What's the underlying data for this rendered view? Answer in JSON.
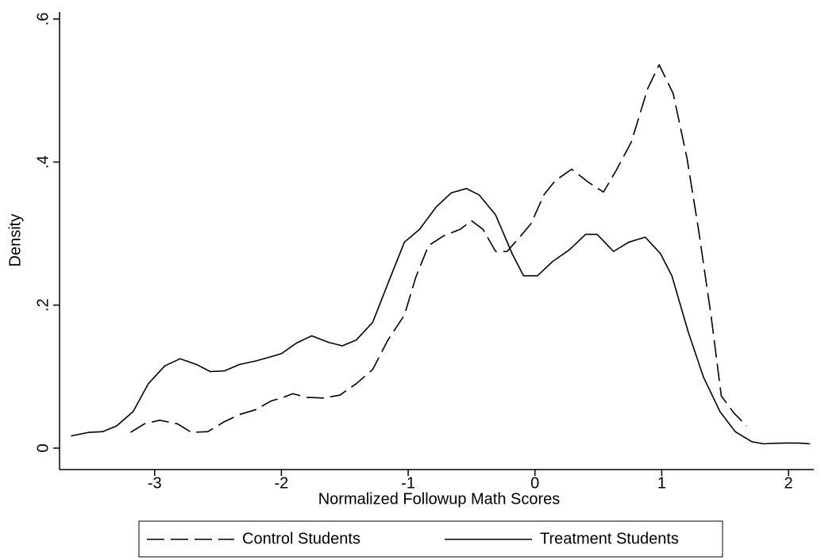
{
  "chart_data": {
    "type": "line",
    "x_label": "Normalized Followup Math Scores",
    "y_label": "Density",
    "xlim": [
      -3.75,
      2.2
    ],
    "ylim": [
      -0.03,
      0.61
    ],
    "xticks": [
      -3,
      -2,
      -1,
      0,
      1,
      2
    ],
    "yticks": [
      0,
      {
        "value": 0.2,
        "label": ".2"
      },
      {
        "value": 0.4,
        "label": ".4"
      },
      {
        "value": 0.6,
        "label": ".6"
      }
    ],
    "grid": false,
    "legend": "bottom",
    "series": [
      {
        "name": "Control Students",
        "color": "#000000",
        "style": "dashed",
        "x": [
          -3.19,
          -3.08,
          -2.96,
          -2.82,
          -2.71,
          -2.58,
          -2.45,
          -2.33,
          -2.2,
          -2.08,
          -2.0,
          -1.91,
          -1.8,
          -1.67,
          -1.54,
          -1.41,
          -1.28,
          -1.16,
          -1.03,
          -0.94,
          -0.84,
          -0.72,
          -0.59,
          -0.5,
          -0.41,
          -0.31,
          -0.22,
          -0.12,
          -0.03,
          0.07,
          0.16,
          0.29,
          0.42,
          0.54,
          0.64,
          0.76,
          0.89,
          0.98,
          1.09,
          1.2,
          1.29,
          1.39,
          1.47,
          1.57,
          1.67
        ],
        "values": [
          0.022,
          0.034,
          0.039,
          0.034,
          0.022,
          0.023,
          0.037,
          0.047,
          0.054,
          0.066,
          0.07,
          0.076,
          0.071,
          0.07,
          0.074,
          0.09,
          0.11,
          0.151,
          0.186,
          0.239,
          0.283,
          0.297,
          0.306,
          0.318,
          0.306,
          0.275,
          0.275,
          0.295,
          0.314,
          0.354,
          0.374,
          0.39,
          0.372,
          0.358,
          0.388,
          0.428,
          0.503,
          0.536,
          0.496,
          0.405,
          0.306,
          0.184,
          0.073,
          0.049,
          0.031
        ]
      },
      {
        "name": "Treatment Students",
        "color": "#000000",
        "style": "solid",
        "x": [
          -3.66,
          -3.52,
          -3.41,
          -3.3,
          -3.17,
          -3.05,
          -2.92,
          -2.8,
          -2.67,
          -2.56,
          -2.45,
          -2.33,
          -2.2,
          -2.08,
          -2.0,
          -1.88,
          -1.76,
          -1.63,
          -1.52,
          -1.41,
          -1.28,
          -1.16,
          -1.03,
          -0.91,
          -0.78,
          -0.66,
          -0.54,
          -0.44,
          -0.31,
          -0.18,
          -0.09,
          0.02,
          0.14,
          0.27,
          0.4,
          0.49,
          0.62,
          0.74,
          0.87,
          0.99,
          1.08,
          1.21,
          1.33,
          1.46,
          1.58,
          1.71,
          1.8,
          1.96,
          2.08,
          2.17
        ],
        "values": [
          0.017,
          0.022,
          0.023,
          0.031,
          0.051,
          0.09,
          0.115,
          0.125,
          0.117,
          0.107,
          0.108,
          0.117,
          0.122,
          0.128,
          0.132,
          0.147,
          0.157,
          0.148,
          0.143,
          0.151,
          0.176,
          0.23,
          0.288,
          0.306,
          0.337,
          0.357,
          0.363,
          0.354,
          0.326,
          0.272,
          0.241,
          0.241,
          0.261,
          0.277,
          0.299,
          0.299,
          0.275,
          0.288,
          0.295,
          0.272,
          0.241,
          0.162,
          0.099,
          0.051,
          0.023,
          0.009,
          0.006,
          0.007,
          0.007,
          0.006
        ]
      }
    ]
  }
}
